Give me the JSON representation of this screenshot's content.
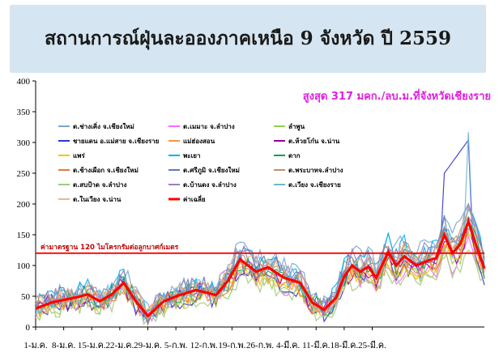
{
  "title": "สถานการณ์ฝุ่นละอองภาคเหนือ 9 จังหวัด ปี 2559",
  "peak_note": "สูงสุด 317 มคก./ลบ.ม.ที่จังหวัดเชียงราย",
  "standard_label": "ค่ามาตรฐาน 120 ไมโครกรัมต่อลูกบาศก์เมตร",
  "chart_data": {
    "type": "line",
    "ylim": [
      0,
      400
    ],
    "yticks": [
      0,
      50,
      100,
      150,
      200,
      250,
      300,
      350,
      400
    ],
    "grid": false,
    "legend_placement": "top-left",
    "xlabels": [
      "1-ม.ค.",
      "8-ม.ค.",
      "15-ม.ค.",
      "22-ม.ค.",
      "29-ม.ค.",
      "5-ก.พ.",
      "12-ก.พ.",
      "19-ก.พ.",
      "26-ก.พ.",
      "4-มี.ค.",
      "11-มี.ค.",
      "18-มี.ค.",
      "25-มี.ค."
    ],
    "days": 91,
    "standard": {
      "value": 120,
      "color": "#ff0000"
    },
    "average_series": {
      "name": "ค่าเฉลี่ย",
      "color": "#ff0000",
      "knots": [
        [
          0,
          30
        ],
        [
          4,
          40
        ],
        [
          10,
          48
        ],
        [
          13,
          53
        ],
        [
          16,
          42
        ],
        [
          19,
          53
        ],
        [
          22,
          72
        ],
        [
          25,
          42
        ],
        [
          28,
          18
        ],
        [
          32,
          42
        ],
        [
          36,
          52
        ],
        [
          40,
          60
        ],
        [
          45,
          52
        ],
        [
          48,
          75
        ],
        [
          51,
          110
        ],
        [
          55,
          90
        ],
        [
          58,
          97
        ],
        [
          62,
          80
        ],
        [
          66,
          72
        ],
        [
          69,
          40
        ],
        [
          72,
          28
        ],
        [
          75,
          48
        ],
        [
          77,
          82
        ],
        [
          79,
          100
        ],
        [
          81,
          90
        ],
        [
          83,
          98
        ],
        [
          85,
          80
        ],
        [
          88,
          122
        ],
        [
          90,
          100
        ],
        [
          92,
          115
        ],
        [
          95,
          100
        ],
        [
          98,
          108
        ],
        [
          100,
          112
        ],
        [
          102,
          150
        ],
        [
          104,
          120
        ],
        [
          106,
          135
        ],
        [
          108,
          172
        ],
        [
          110,
          132
        ],
        [
          112,
          95
        ]
      ]
    },
    "series": [
      {
        "name": "ต.ช่างเคิ่ง จ.เชียงใหม่",
        "color": "#79a6ce"
      },
      {
        "name": "ต.เมมาะ จ.ลำปาง",
        "color": "#ff66ff"
      },
      {
        "name": "ลำพูน",
        "color": "#92d050"
      },
      {
        "name": "ชายแดน อ.แม่สาย จ.เชียงราย",
        "color": "#3333cc"
      },
      {
        "name": "แม่ฮ่องสอน",
        "color": "#f79646"
      },
      {
        "name": "ต.ห้วยโก๋น จ.น่าน",
        "color": "#990099"
      },
      {
        "name": "แพร่",
        "color": "#ffc000"
      },
      {
        "name": "พะเยา",
        "color": "#00b0f0"
      },
      {
        "name": "ตาก",
        "color": "#00a050"
      },
      {
        "name": "ต.ช้างเผือก จ.เชียงใหม่",
        "color": "#e57c3a"
      },
      {
        "name": "ต.ศรีภูมิ จ.เชียงใหม่",
        "color": "#5a7fb0"
      },
      {
        "name": "ต.พระบาทจ.ลำปาง",
        "color": "#c0906a"
      },
      {
        "name": "ต.สบป้าด จ.ลำปาง",
        "color": "#a5c97e"
      },
      {
        "name": "ต.บ้านดง จ.ลำปาง",
        "color": "#9b7fbf"
      },
      {
        "name": "ต.เวียง จ.เชียงราย",
        "color": "#6fb7cf"
      },
      {
        "name": "ต.ในเวียง จ.น่าน",
        "color": "#f4b183"
      },
      {
        "name": "ค่าเฉลี่ย",
        "color": "#ff0000"
      }
    ]
  }
}
